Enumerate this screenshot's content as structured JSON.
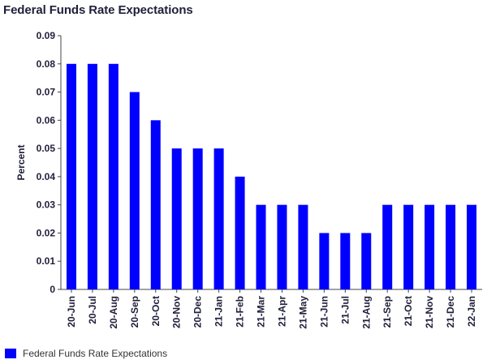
{
  "chart_data": {
    "type": "bar",
    "title": "Federal Funds Rate Expectations",
    "xlabel": "",
    "ylabel": "Percent",
    "ylim": [
      0,
      0.09
    ],
    "yticks": [
      "0",
      "0.01",
      "0.02",
      "0.03",
      "0.04",
      "0.05",
      "0.06",
      "0.07",
      "0.08",
      "0.09"
    ],
    "categories": [
      "20-Jun",
      "20-Jul",
      "20-Aug",
      "20-Sep",
      "20-Oct",
      "20-Nov",
      "20-Dec",
      "21-Jan",
      "21-Feb",
      "21-Mar",
      "21-Apr",
      "21-May",
      "21-Jun",
      "21-Jul",
      "21-Aug",
      "21-Sep",
      "21-Oct",
      "21-Nov",
      "21-Dec",
      "22-Jan"
    ],
    "series": [
      {
        "name": "Federal Funds Rate Expectations",
        "color": "#0000ff",
        "values": [
          0.08,
          0.08,
          0.08,
          0.07,
          0.06,
          0.05,
          0.05,
          0.05,
          0.04,
          0.03,
          0.03,
          0.03,
          0.02,
          0.02,
          0.02,
          0.03,
          0.03,
          0.03,
          0.03,
          0.03
        ]
      }
    ],
    "grid": false,
    "legend_position": "bottom-left"
  }
}
